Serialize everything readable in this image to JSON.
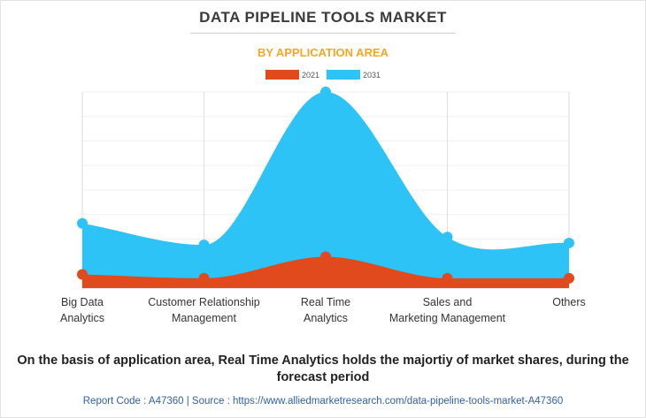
{
  "header": {
    "title": "DATA PIPELINE TOOLS MARKET",
    "subtitle": "BY APPLICATION AREA"
  },
  "colors": {
    "series_2021": "#e04a1c",
    "series_2031": "#2ec3f7",
    "subtitle": "#f5a623",
    "footer": "#2f5fa8"
  },
  "chart_data": {
    "type": "area",
    "smooth": true,
    "categories": [
      [
        "Big Data",
        "Analytics"
      ],
      [
        "Customer Relationship",
        "Management"
      ],
      [
        "Real Time",
        "Analytics"
      ],
      [
        "Sales and",
        "Marketing Management"
      ],
      [
        "Others"
      ]
    ],
    "series": [
      {
        "name": "2021",
        "values": [
          7,
          5,
          16,
          5,
          5
        ]
      },
      {
        "name": "2031",
        "values": [
          33,
          22,
          100,
          26,
          23
        ]
      }
    ],
    "ylim": [
      0,
      100
    ],
    "grid": "vertical",
    "legend": "top-center",
    "title": "DATA PIPELINE TOOLS MARKET",
    "subtitle": "BY APPLICATION AREA",
    "xlabel": "",
    "ylabel": ""
  },
  "caption": "On the basis of application area, Real Time Analytics holds the majortiy of market shares, during the forecast period",
  "footer": "Report Code : A47360  |  Source : https://www.alliedmarketresearch.com/data-pipeline-tools-market-A47360"
}
